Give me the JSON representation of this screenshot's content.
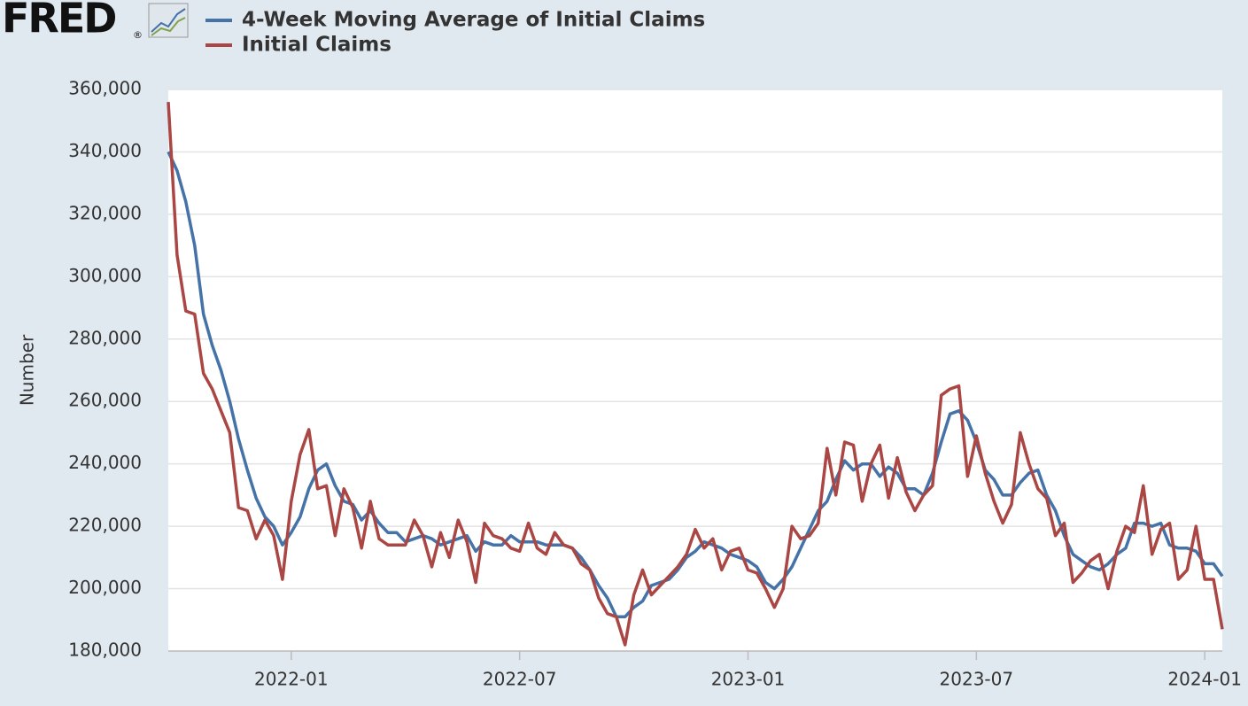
{
  "logo": "FRED",
  "logo_mark": "®",
  "chart_data": {
    "type": "line",
    "y_label": "Number",
    "categories": [
      null,
      null,
      null,
      null,
      null,
      null,
      null,
      null,
      null,
      null,
      null,
      null,
      null,
      null,
      "2022-01",
      null,
      null,
      null,
      null,
      null,
      null,
      null,
      null,
      null,
      null,
      null,
      null,
      null,
      null,
      null,
      null,
      null,
      null,
      null,
      null,
      null,
      null,
      null,
      null,
      null,
      "2022-07",
      null,
      null,
      null,
      null,
      null,
      null,
      null,
      null,
      null,
      null,
      null,
      null,
      null,
      null,
      null,
      null,
      null,
      null,
      null,
      null,
      null,
      null,
      null,
      null,
      null,
      "2023-01",
      null,
      null,
      null,
      null,
      null,
      null,
      null,
      null,
      null,
      null,
      null,
      null,
      null,
      null,
      null,
      null,
      null,
      null,
      null,
      null,
      null,
      null,
      null,
      null,
      null,
      "2023-07",
      null,
      null,
      null,
      null,
      null,
      null,
      null,
      null,
      null,
      null,
      null,
      null,
      null,
      null,
      null,
      null,
      null,
      null,
      null,
      null,
      null,
      null,
      null,
      null,
      null,
      "2024-01",
      null,
      null
    ],
    "series": [
      {
        "name": "4-Week Moving Average of Initial Claims",
        "color": "#4572a7",
        "values": [
          340000,
          334000,
          324000,
          310000,
          288000,
          278000,
          270000,
          260000,
          248000,
          238000,
          229000,
          223000,
          220000,
          214000,
          218000,
          223000,
          232000,
          238000,
          240000,
          233000,
          228000,
          227000,
          222000,
          225000,
          221000,
          218000,
          218000,
          215000,
          216000,
          217000,
          216000,
          214000,
          215000,
          216000,
          217000,
          212000,
          215000,
          214000,
          214000,
          217000,
          215000,
          215000,
          215000,
          214000,
          214000,
          214000,
          213000,
          210000,
          206000,
          201000,
          197000,
          191000,
          191000,
          194000,
          196000,
          201000,
          202000,
          203000,
          206000,
          210000,
          212000,
          215000,
          214000,
          213000,
          211000,
          210000,
          209000,
          207000,
          202000,
          200000,
          203000,
          207000,
          213000,
          219000,
          225000,
          228000,
          235000,
          241000,
          238000,
          240000,
          240000,
          236000,
          239000,
          237000,
          232000,
          232000,
          230000,
          237000,
          247000,
          256000,
          257000,
          254000,
          247000,
          238000,
          235000,
          230000,
          230000,
          234000,
          237000,
          238000,
          230000,
          225000,
          217000,
          211000,
          209000,
          207000,
          206000,
          208000,
          211000,
          213000,
          221000,
          221000,
          220000,
          221000,
          214000,
          213000,
          213000,
          212000,
          208000,
          208000,
          204000
        ]
      },
      {
        "name": "Initial Claims",
        "color": "#aa4643",
        "values": [
          356000,
          307000,
          289000,
          288000,
          269000,
          264000,
          257000,
          250000,
          226000,
          225000,
          216000,
          222000,
          217000,
          203000,
          228000,
          243000,
          251000,
          232000,
          233000,
          217000,
          232000,
          226000,
          213000,
          228000,
          216000,
          214000,
          214000,
          214000,
          222000,
          217000,
          207000,
          218000,
          210000,
          222000,
          215000,
          202000,
          221000,
          217000,
          216000,
          213000,
          212000,
          221000,
          213000,
          211000,
          218000,
          214000,
          213000,
          208000,
          206000,
          197000,
          192000,
          191000,
          182000,
          198000,
          206000,
          198000,
          201000,
          204000,
          207000,
          211000,
          219000,
          213000,
          216000,
          206000,
          212000,
          213000,
          206000,
          205000,
          200000,
          194000,
          200000,
          220000,
          216000,
          217000,
          221000,
          245000,
          230000,
          247000,
          246000,
          228000,
          240000,
          246000,
          229000,
          242000,
          231000,
          225000,
          230000,
          233000,
          262000,
          264000,
          265000,
          236000,
          249000,
          237000,
          228000,
          221000,
          227000,
          250000,
          240000,
          232000,
          229000,
          217000,
          221000,
          202000,
          205000,
          209000,
          211000,
          200000,
          212000,
          220000,
          218000,
          233000,
          211000,
          219000,
          221000,
          203000,
          206000,
          220000,
          203000,
          203000,
          187000
        ]
      }
    ],
    "ylim": [
      180000,
      360000
    ],
    "yticks": [
      {
        "value": 180000,
        "label": "180,000"
      },
      {
        "value": 200000,
        "label": "200,000"
      },
      {
        "value": 220000,
        "label": "220,000"
      },
      {
        "value": 240000,
        "label": "240,000"
      },
      {
        "value": 260000,
        "label": "260,000"
      },
      {
        "value": 280000,
        "label": "280,000"
      },
      {
        "value": 300000,
        "label": "300,000"
      },
      {
        "value": 320000,
        "label": "320,000"
      },
      {
        "value": 340000,
        "label": "340,000"
      },
      {
        "value": 360000,
        "label": "360,000"
      }
    ],
    "grid": true
  }
}
